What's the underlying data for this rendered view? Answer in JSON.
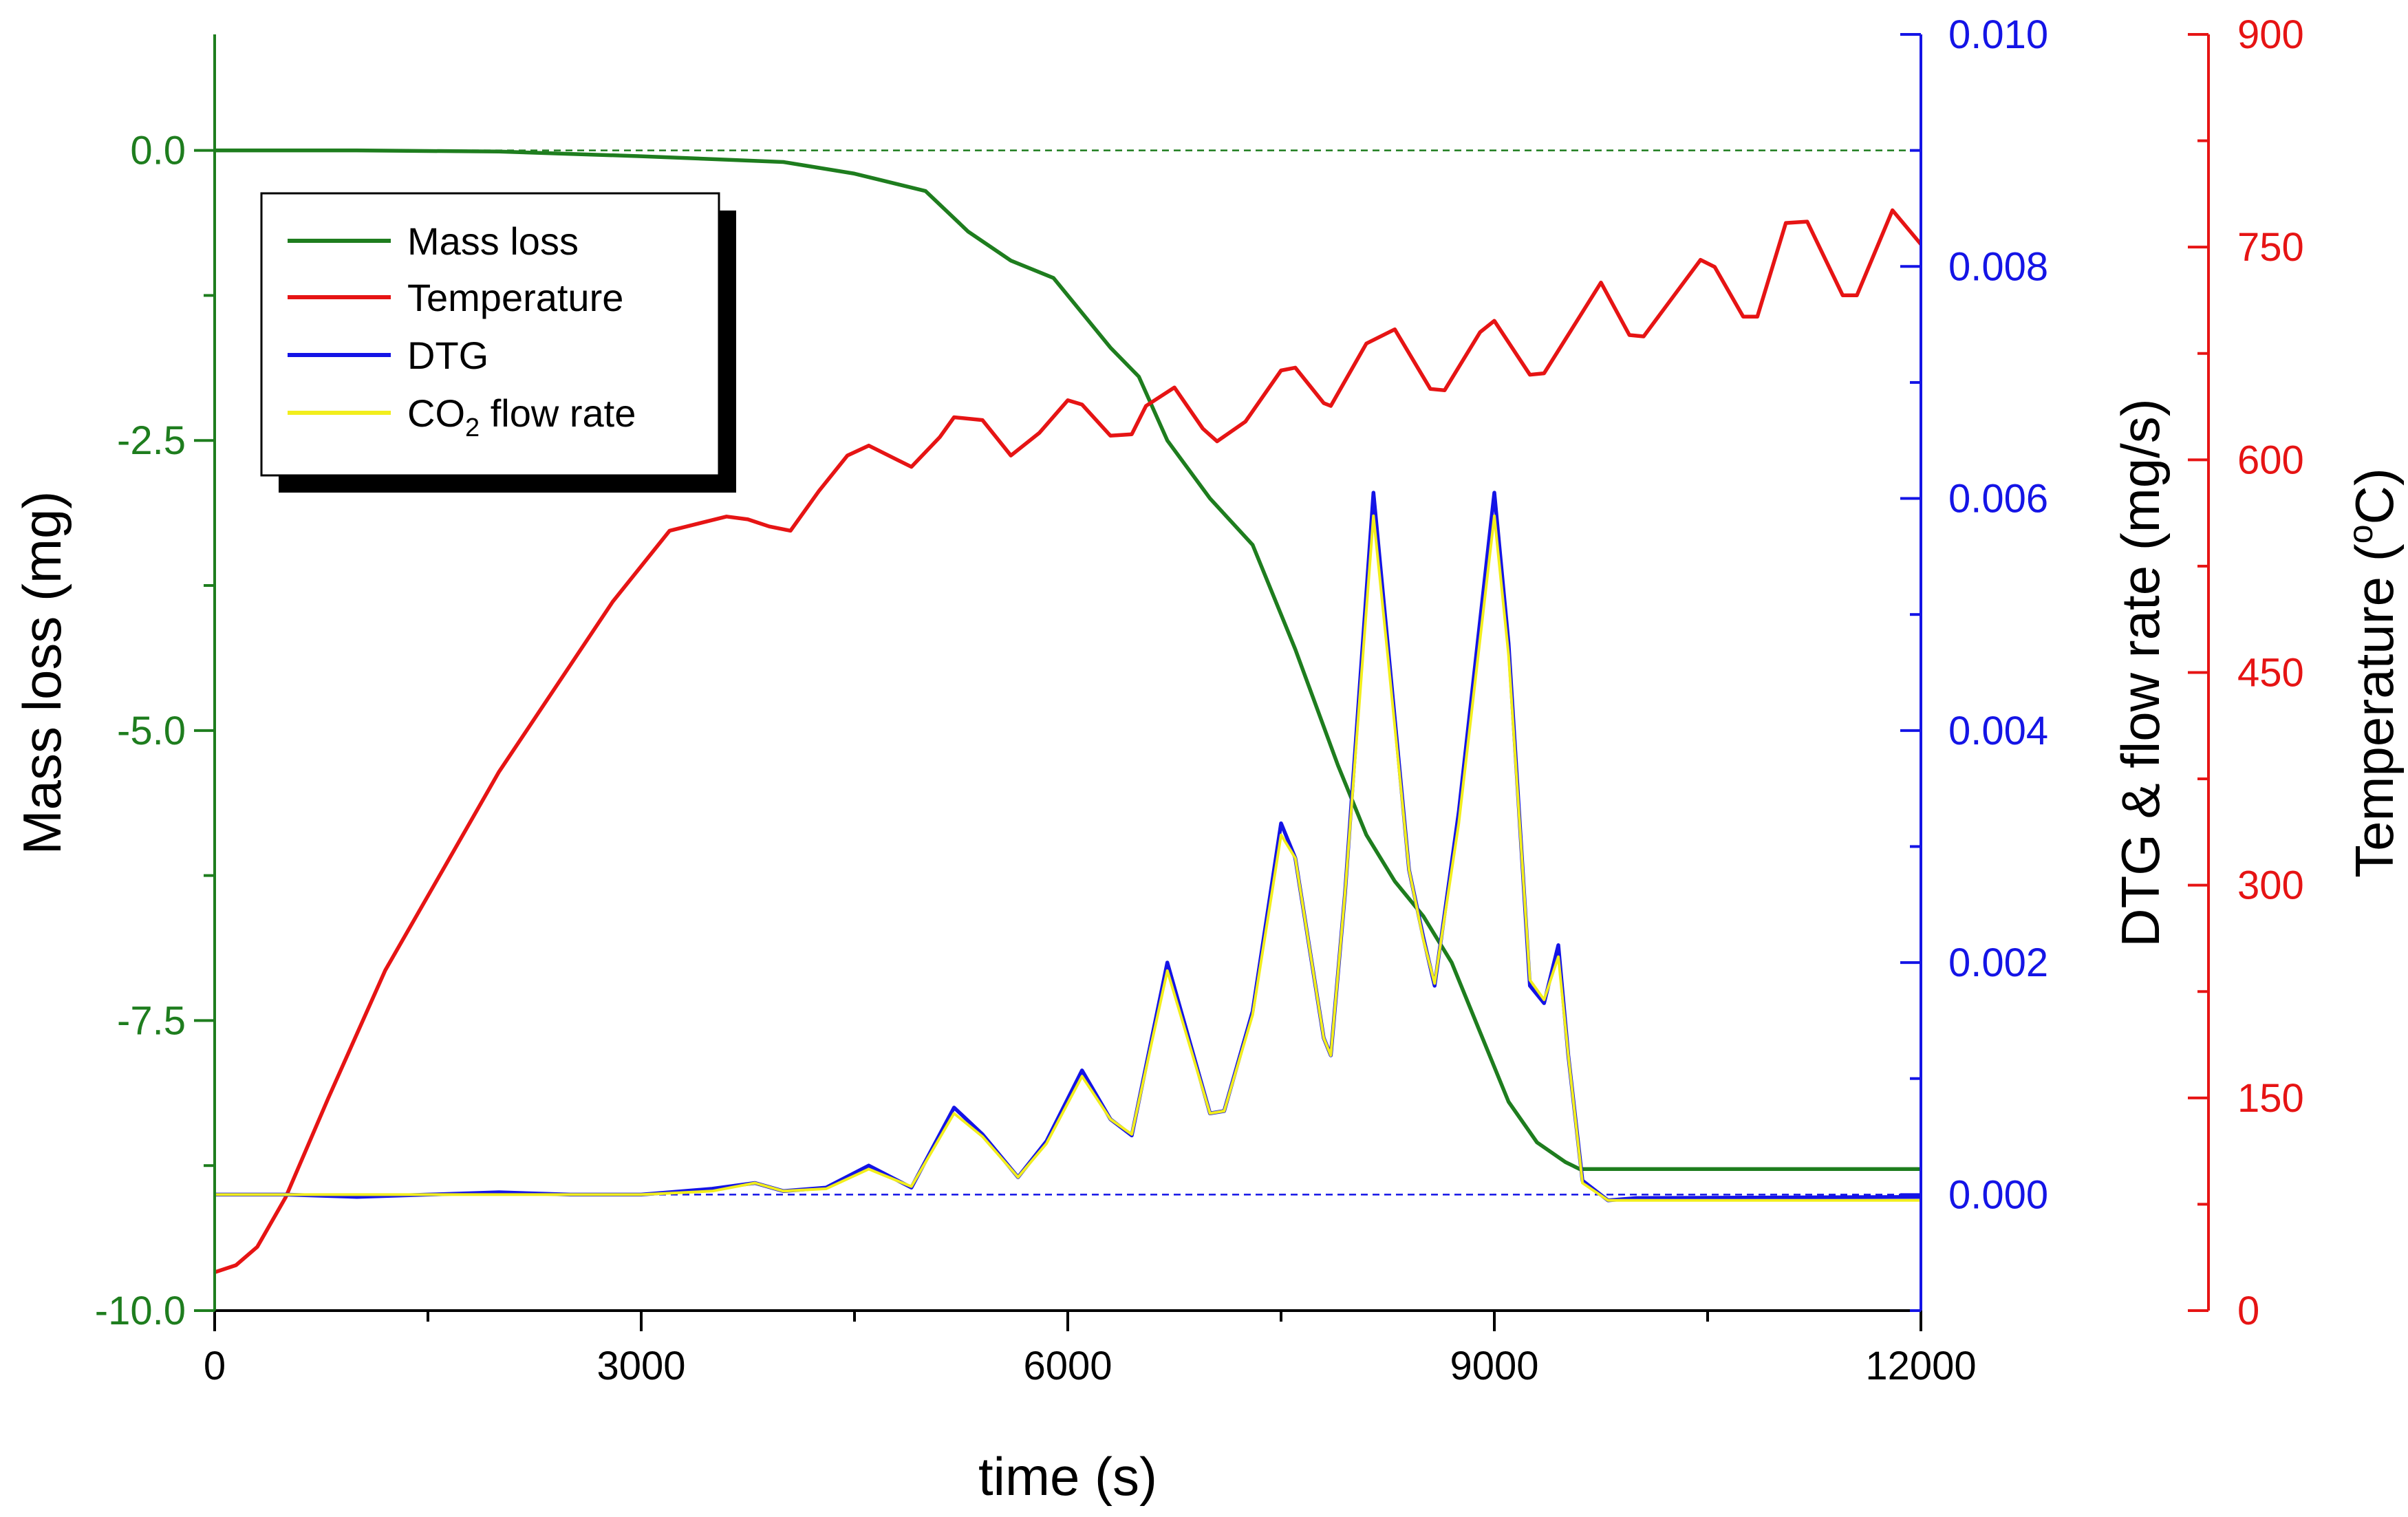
{
  "chart_data": {
    "type": "line",
    "xlabel": "time (s)",
    "xlim": [
      0,
      12000
    ],
    "xticks": [
      0,
      3000,
      6000,
      9000,
      12000
    ],
    "axes": {
      "mass": {
        "label": "Mass loss (mg)",
        "color": "#1e7d1e",
        "ylim": [
          -10.0,
          1.0
        ],
        "ticks": [
          0.0,
          -2.5,
          -5.0,
          -7.5,
          -10.0
        ],
        "tick_labels": [
          "0.0",
          "-2.5",
          "-5.0",
          "-7.5",
          "-10.0"
        ]
      },
      "dtg": {
        "label": "DTG & flow rate (mg/s)",
        "color": "#1414e6",
        "ylim": [
          -0.001,
          0.01
        ],
        "ticks": [
          0.0,
          0.002,
          0.004,
          0.006,
          0.008,
          0.01
        ],
        "tick_labels": [
          "0.000",
          "0.002",
          "0.004",
          "0.006",
          "0.008",
          "0.010"
        ]
      },
      "temp": {
        "label_main": "Temperature (",
        "label_sup": "o",
        "label_tail": "C)",
        "color": "#e61414",
        "ylim": [
          0,
          900
        ],
        "ticks": [
          0,
          150,
          300,
          450,
          600,
          750,
          900
        ],
        "tick_labels": [
          "0",
          "150",
          "300",
          "450",
          "600",
          "750",
          "900"
        ]
      }
    },
    "series": [
      {
        "name": "Mass loss",
        "axis": "mass",
        "color": "#1e7d1e",
        "x": [
          0,
          1000,
          2000,
          3000,
          4000,
          4500,
          5000,
          5300,
          5600,
          5900,
          6100,
          6300,
          6500,
          6700,
          7000,
          7300,
          7600,
          7900,
          8100,
          8300,
          8500,
          8700,
          8900,
          9100,
          9300,
          9500,
          9600,
          9700,
          10000,
          12000
        ],
        "y": [
          0,
          0,
          -0.01,
          -0.05,
          -0.1,
          -0.2,
          -0.35,
          -0.7,
          -0.95,
          -1.1,
          -1.4,
          -1.7,
          -1.95,
          -2.5,
          -3.0,
          -3.4,
          -4.3,
          -5.3,
          -5.9,
          -6.3,
          -6.6,
          -7.0,
          -7.6,
          -8.2,
          -8.55,
          -8.72,
          -8.78,
          -8.78,
          -8.78,
          -8.78
        ]
      },
      {
        "name": "Temperature",
        "axis": "temp",
        "color": "#e61414",
        "x": [
          0,
          150,
          300,
          500,
          800,
          1200,
          1600,
          2000,
          2400,
          2800,
          3200,
          3600,
          3750,
          3900,
          4050,
          4250,
          4450,
          4600,
          4800,
          4900,
          5100,
          5200,
          5400,
          5600,
          5800,
          6000,
          6100,
          6300,
          6450,
          6550,
          6750,
          6950,
          7050,
          7250,
          7500,
          7600,
          7800,
          7850,
          8100,
          8300,
          8550,
          8650,
          8900,
          9000,
          9250,
          9350,
          9600,
          9750,
          9950,
          10050,
          10450,
          10550,
          10750,
          10850,
          11050,
          11200,
          11450,
          11550,
          11800,
          12000
        ],
        "y": [
          27,
          32,
          45,
          80,
          150,
          240,
          310,
          380,
          440,
          500,
          550,
          560,
          558,
          553,
          550,
          578,
          603,
          610,
          600,
          595,
          616,
          630,
          628,
          603,
          619,
          642,
          639,
          617,
          618,
          638,
          651,
          622,
          613,
          627,
          663,
          665,
          640,
          638,
          682,
          692,
          650,
          649,
          690,
          698,
          660,
          661,
          701,
          725,
          688,
          687,
          741,
          736,
          701,
          701,
          767,
          768,
          716,
          716,
          776,
          752
        ]
      },
      {
        "name": "DTG",
        "axis": "dtg",
        "color": "#1414e6",
        "x": [
          0,
          500,
          1000,
          1500,
          2000,
          2500,
          3000,
          3500,
          3800,
          4000,
          4300,
          4600,
          4900,
          5200,
          5400,
          5650,
          5850,
          6100,
          6300,
          6450,
          6700,
          7000,
          7100,
          7300,
          7500,
          7600,
          7800,
          7850,
          7950,
          8150,
          8250,
          8400,
          8500,
          8580,
          8750,
          9000,
          9100,
          9250,
          9350,
          9450,
          9520,
          9620,
          9800,
          10000,
          12000
        ],
        "y": [
          0.0,
          0.0,
          -2e-05,
          0.0,
          2e-05,
          0.0,
          0.0,
          5e-05,
          0.0001,
          3e-05,
          6e-05,
          0.00025,
          6e-05,
          0.00075,
          0.00052,
          0.00015,
          0.00046,
          0.00107,
          0.00065,
          0.00051,
          0.002,
          0.0007,
          0.00072,
          0.00158,
          0.0032,
          0.0029,
          0.00135,
          0.0012,
          0.0026,
          0.00605,
          0.00475,
          0.0028,
          0.00222,
          0.0018,
          0.0033,
          0.00605,
          0.00475,
          0.0018,
          0.00165,
          0.00215,
          0.0012,
          0.00012,
          -5e-05,
          -3e-05,
          -2e-05
        ]
      },
      {
        "name": "CO2 flow rate",
        "legend_main": "CO",
        "legend_sub": "2",
        "legend_tail": " flow rate",
        "axis": "dtg",
        "color": "#f2ee1d",
        "x": [
          0,
          500,
          1000,
          1500,
          2000,
          2500,
          3000,
          3500,
          3800,
          4000,
          4300,
          4600,
          4900,
          5200,
          5400,
          5650,
          5850,
          6100,
          6300,
          6450,
          6700,
          7000,
          7100,
          7300,
          7500,
          7600,
          7800,
          7850,
          7950,
          8150,
          8250,
          8400,
          8500,
          8580,
          8750,
          9000,
          9100,
          9250,
          9350,
          9450,
          9520,
          9620,
          9800,
          10000,
          12000
        ],
        "y": [
          0.0,
          0.0,
          0.0,
          0.0,
          0.0,
          0.0,
          0.0,
          3e-05,
          0.0001,
          3e-05,
          5e-05,
          0.00022,
          7e-05,
          0.0007,
          0.0005,
          0.00015,
          0.00044,
          0.00102,
          0.00065,
          0.00052,
          0.00193,
          0.0007,
          0.00072,
          0.00155,
          0.0031,
          0.0029,
          0.00135,
          0.0012,
          0.0026,
          0.00585,
          0.00465,
          0.0028,
          0.0022,
          0.00182,
          0.0032,
          0.00585,
          0.00465,
          0.00185,
          0.00168,
          0.00205,
          0.0012,
          0.0001,
          -5e-05,
          -5e-05,
          -5e-05
        ]
      }
    ],
    "reference_lines": [
      {
        "axis": "mass",
        "y": 0.0,
        "color": "#1e7d1e",
        "style": "dashed"
      },
      {
        "axis": "dtg",
        "y": 0.0,
        "color": "#1414e6",
        "style": "dashed"
      }
    ],
    "legend": {
      "placement": "upper-left",
      "shadow": true
    },
    "grid": false
  }
}
